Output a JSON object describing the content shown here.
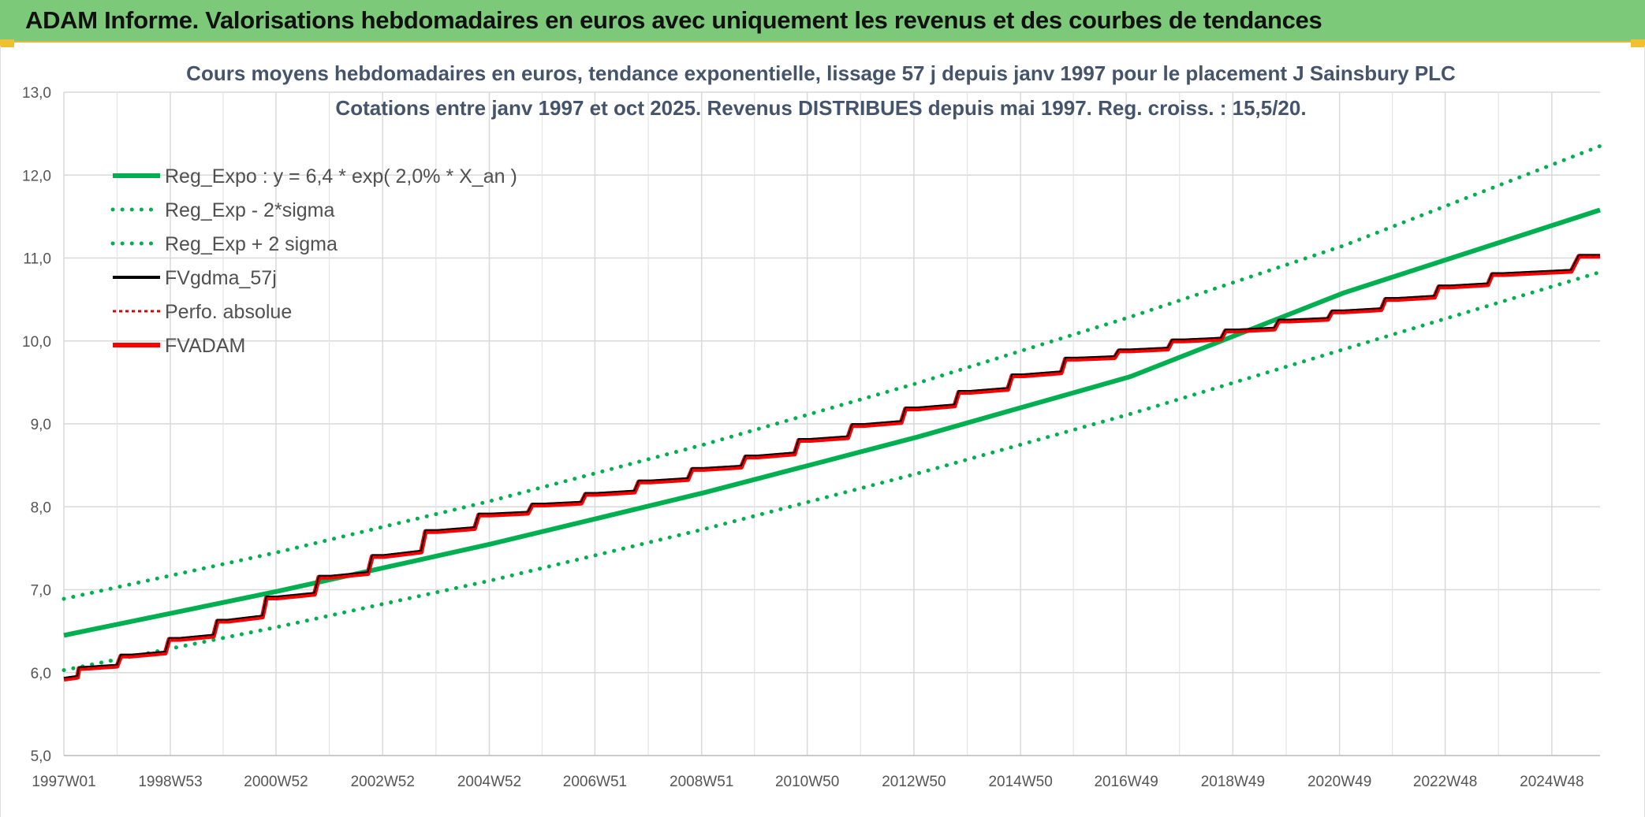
{
  "header": {
    "title": "ADAM Informe. Valorisations hebdomadaires en euros avec uniquement les revenus et des courbes de tendances",
    "background": "#7dc97a",
    "accent": "#f0c030"
  },
  "chart_data": {
    "type": "line",
    "title": "Cours moyens hebdomadaires en euros, tendance exponentielle, lissage 57 j depuis janv 1997 pour le placement J Sainsbury PLC",
    "subtitle": "Cotations entre janv 1997 et oct 2025. Revenus DISTRIBUES depuis mai 1997. Reg. croiss. : 15,5/20.",
    "xlabel": "",
    "ylabel": "",
    "ylim": [
      5.0,
      13.0
    ],
    "yticks": [
      "5,0",
      "6,0",
      "7,0",
      "8,0",
      "9,0",
      "10,0",
      "11,0",
      "12,0",
      "13,0"
    ],
    "xlim": [
      "1997W01",
      "2025W43"
    ],
    "xticks": [
      "1997W01",
      "1998W53",
      "2000W52",
      "2002W52",
      "2004W52",
      "2006W51",
      "2008W51",
      "2010W50",
      "2012W50",
      "2014W50",
      "2016W49",
      "2018W49",
      "2020W49",
      "2022W48",
      "2024W48"
    ],
    "grid": true,
    "legend_position": "top-left",
    "series": [
      {
        "name": "Reg_Expo : y = 6,4 * exp( 2,0% *  X_an )",
        "style": "solid",
        "color": "#00b050",
        "x": [
          "1997W01",
          "2001W01",
          "2005W01",
          "2009W01",
          "2013W01",
          "2017W01",
          "2021W01",
          "2025W43"
        ],
        "values": [
          6.45,
          6.98,
          7.55,
          8.17,
          8.84,
          9.57,
          10.58,
          11.58
        ]
      },
      {
        "name": "Reg_Exp - 2*sigma",
        "style": "dotted",
        "color": "#00b050",
        "x": [
          "1997W01",
          "2001W01",
          "2005W01",
          "2009W01",
          "2013W01",
          "2017W01",
          "2021W01",
          "2025W43"
        ],
        "values": [
          6.03,
          6.55,
          7.11,
          7.73,
          8.4,
          9.12,
          9.9,
          10.83
        ]
      },
      {
        "name": "Reg_Exp + 2 sigma",
        "style": "dotted",
        "color": "#00b050",
        "x": [
          "1997W01",
          "2001W01",
          "2005W01",
          "2009W01",
          "2013W01",
          "2017W01",
          "2021W01",
          "2025W43"
        ],
        "values": [
          6.89,
          7.45,
          8.07,
          8.75,
          9.49,
          10.29,
          11.15,
          12.35
        ]
      },
      {
        "name": "FVgdma_57j",
        "style": "solid",
        "color": "#000000",
        "x": [
          "1997W01",
          "1997W20",
          "1998W15",
          "1999W10",
          "2000W05",
          "2001W01",
          "2002W01",
          "2003W01",
          "2004W01",
          "2005W01",
          "2006W01",
          "2007W01",
          "2008W01",
          "2009W01",
          "2010W01",
          "2011W01",
          "2012W01",
          "2013W01",
          "2014W01",
          "2015W01",
          "2016W01",
          "2017W01",
          "2018W01",
          "2019W01",
          "2020W01",
          "2021W01",
          "2022W01",
          "2023W01",
          "2024W01",
          "2025W43"
        ],
        "values": [
          5.92,
          6.05,
          6.2,
          6.4,
          6.62,
          6.9,
          7.15,
          7.4,
          7.7,
          7.9,
          8.02,
          8.15,
          8.3,
          8.45,
          8.6,
          8.8,
          8.98,
          9.18,
          9.38,
          9.58,
          9.78,
          9.88,
          10.0,
          10.12,
          10.24,
          10.35,
          10.5,
          10.65,
          10.8,
          11.02
        ]
      },
      {
        "name": "Perfo. absolue",
        "style": "dotted",
        "color": "#e00000",
        "x": [
          "1997W01",
          "1997W20",
          "1998W15",
          "1999W10",
          "2000W05",
          "2001W01",
          "2002W01",
          "2003W01",
          "2004W01",
          "2005W01",
          "2006W01",
          "2007W01",
          "2008W01",
          "2009W01",
          "2010W01",
          "2011W01",
          "2012W01",
          "2013W01",
          "2014W01",
          "2015W01",
          "2016W01",
          "2017W01",
          "2018W01",
          "2019W01",
          "2020W01",
          "2021W01",
          "2022W01",
          "2023W01",
          "2024W01",
          "2025W43"
        ],
        "values": [
          5.92,
          6.05,
          6.2,
          6.4,
          6.62,
          6.9,
          7.15,
          7.4,
          7.7,
          7.9,
          8.02,
          8.15,
          8.3,
          8.45,
          8.6,
          8.8,
          8.98,
          9.18,
          9.38,
          9.58,
          9.78,
          9.88,
          10.0,
          10.12,
          10.24,
          10.35,
          10.5,
          10.65,
          10.8,
          11.02
        ]
      },
      {
        "name": "FVADAM",
        "style": "solid",
        "color": "#ff0000",
        "x": [
          "1997W01",
          "1997W20",
          "1998W15",
          "1999W10",
          "2000W05",
          "2001W01",
          "2002W01",
          "2003W01",
          "2004W01",
          "2005W01",
          "2006W01",
          "2007W01",
          "2008W01",
          "2009W01",
          "2010W01",
          "2011W01",
          "2012W01",
          "2013W01",
          "2014W01",
          "2015W01",
          "2016W01",
          "2017W01",
          "2018W01",
          "2019W01",
          "2020W01",
          "2021W01",
          "2022W01",
          "2023W01",
          "2024W01",
          "2025W43"
        ],
        "values": [
          5.92,
          6.05,
          6.2,
          6.4,
          6.62,
          6.9,
          7.15,
          7.4,
          7.7,
          7.9,
          8.02,
          8.15,
          8.3,
          8.45,
          8.6,
          8.8,
          8.98,
          9.18,
          9.38,
          9.58,
          9.78,
          9.88,
          10.0,
          10.12,
          10.24,
          10.35,
          10.5,
          10.65,
          10.8,
          11.02
        ]
      }
    ]
  }
}
